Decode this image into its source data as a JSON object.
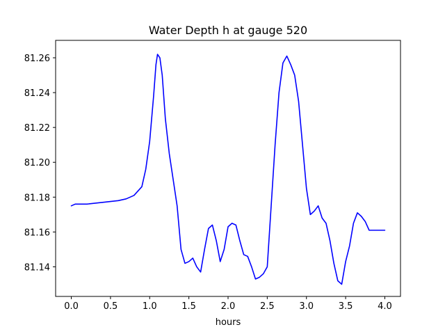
{
  "chart_data": {
    "type": "line",
    "title": "Water Depth h at gauge 520",
    "xlabel": "hours",
    "ylabel": "",
    "xlim": [
      -0.2,
      4.2
    ],
    "ylim": [
      81.123,
      81.27
    ],
    "x_ticks": [
      0.0,
      0.5,
      1.0,
      1.5,
      2.0,
      2.5,
      3.0,
      3.5,
      4.0
    ],
    "x_tick_labels": [
      "0.0",
      "0.5",
      "1.0",
      "1.5",
      "2.0",
      "2.5",
      "3.0",
      "3.5",
      "4.0"
    ],
    "y_ticks": [
      81.14,
      81.16,
      81.18,
      81.2,
      81.22,
      81.24,
      81.26
    ],
    "y_tick_labels": [
      "81.14",
      "81.16",
      "81.18",
      "81.20",
      "81.22",
      "81.24",
      "81.26"
    ],
    "grid": false,
    "legend": "none",
    "series": [
      {
        "color": "#0000ff",
        "x": [
          0.0,
          0.05,
          0.2,
          0.4,
          0.6,
          0.7,
          0.8,
          0.9,
          0.95,
          1.0,
          1.05,
          1.08,
          1.1,
          1.13,
          1.16,
          1.2,
          1.25,
          1.3,
          1.35,
          1.4,
          1.45,
          1.5,
          1.55,
          1.6,
          1.65,
          1.7,
          1.75,
          1.8,
          1.85,
          1.9,
          1.95,
          2.0,
          2.05,
          2.1,
          2.15,
          2.2,
          2.25,
          2.3,
          2.35,
          2.4,
          2.45,
          2.5,
          2.55,
          2.6,
          2.65,
          2.7,
          2.75,
          2.8,
          2.85,
          2.9,
          2.95,
          3.0,
          3.05,
          3.1,
          3.15,
          3.2,
          3.25,
          3.3,
          3.35,
          3.4,
          3.45,
          3.5,
          3.55,
          3.6,
          3.65,
          3.7,
          3.75,
          3.8,
          3.85,
          3.9,
          3.95,
          4.0
        ],
        "values": [
          81.175,
          81.176,
          81.176,
          81.177,
          81.178,
          81.179,
          81.181,
          81.186,
          81.196,
          81.212,
          81.238,
          81.256,
          81.262,
          81.26,
          81.25,
          81.225,
          81.205,
          81.19,
          81.175,
          81.15,
          81.142,
          81.143,
          81.145,
          81.14,
          81.137,
          81.15,
          81.162,
          81.164,
          81.155,
          81.143,
          81.15,
          81.163,
          81.165,
          81.164,
          81.155,
          81.147,
          81.146,
          81.14,
          81.133,
          81.134,
          81.136,
          81.14,
          81.175,
          81.21,
          81.24,
          81.257,
          81.261,
          81.256,
          81.25,
          81.235,
          81.21,
          81.185,
          81.17,
          81.172,
          81.175,
          81.168,
          81.165,
          81.155,
          81.142,
          81.132,
          81.13,
          81.143,
          81.152,
          81.165,
          81.171,
          81.169,
          81.166,
          81.161,
          81.161,
          81.161,
          81.161,
          81.161
        ]
      }
    ]
  }
}
